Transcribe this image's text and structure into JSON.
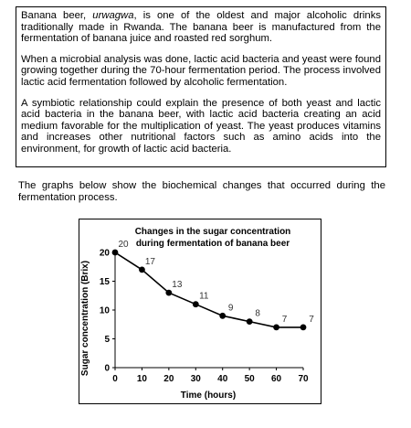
{
  "passage": {
    "p1": {
      "before": "Banana beer, ",
      "term": "urwagwa",
      "after": ", is one of the oldest and major alcoholic drinks traditionally made in Rwanda. The banana beer is manufactured from the fermentation of banana juice and roasted red sorghum."
    },
    "p2": "When a microbial analysis was done, lactic acid bacteria and yeast were found growing together during the 70-hour fermentation period. The process involved lactic acid fermentation followed by alcoholic fermentation.",
    "p3": "A symbiotic relationship could explain the presence of both yeast and lactic acid bacteria in the banana beer, with lactic acid bacteria creating an acid medium favorable for the multiplication of yeast. The yeast produces vitamins and increases other nutritional factors such as amino acids into the environment, for growth of lactic acid bacteria."
  },
  "intro": "The graphs below show the biochemical changes that occurred during the fermentation process.",
  "chart_data": {
    "type": "line",
    "title": [
      "Changes in the sugar concentration",
      "during fermentation of banana beer"
    ],
    "xlabel": "Time (hours)",
    "ylabel": "Sugar concentration (Brix)",
    "x": [
      0,
      10,
      20,
      30,
      40,
      50,
      60,
      70
    ],
    "values": [
      20,
      17,
      13,
      11,
      9,
      8,
      7,
      7
    ],
    "data_labels": [
      "20",
      "17",
      "13",
      "11",
      "9",
      "8",
      "7",
      "7"
    ],
    "x_ticks": [
      0,
      10,
      20,
      30,
      40,
      50,
      60,
      70
    ],
    "y_ticks": [
      0,
      5,
      10,
      15,
      20
    ],
    "xlim": [
      0,
      70
    ],
    "ylim": [
      0,
      20
    ],
    "grid": false,
    "line_color": "#000000",
    "marker_color": "#000000"
  }
}
